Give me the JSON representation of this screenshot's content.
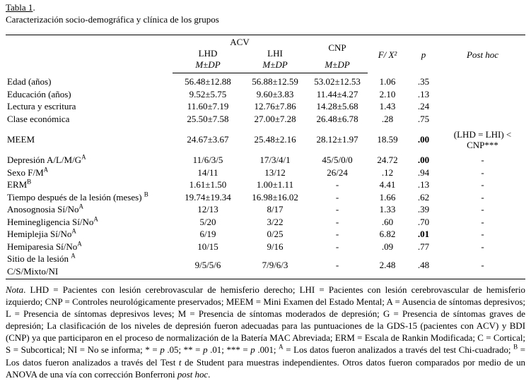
{
  "title": {
    "label": "Tabla 1",
    "period": ".",
    "caption": "Caracterización socio-demográfica y clínica de los grupos"
  },
  "table": {
    "header": {
      "group": "ACV",
      "col_lhd": "LHD",
      "col_lhi": "LHI",
      "col_cnp": "CNP",
      "col_stat": "F/ X²",
      "col_p": "p",
      "col_posthoc": "Post hoc",
      "subheader": "M±DP"
    },
    "rows": [
      {
        "label": "Edad (años)",
        "sup": "",
        "values": [
          "56.48±12.88",
          "56.88±12.59",
          "53.02±12.53",
          "1.06",
          ".35",
          ""
        ],
        "p_bold": false
      },
      {
        "label": "Educación (años)",
        "sup": "",
        "values": [
          "9.52±5.75",
          "9.60±3.83",
          "11.44±4.27",
          "2.10",
          ".13",
          ""
        ],
        "p_bold": false
      },
      {
        "label": "Lectura y escritura",
        "sup": "",
        "values": [
          "11.60±7.19",
          "12.76±7.86",
          "14.28±5.68",
          "1.43",
          ".24",
          ""
        ],
        "p_bold": false
      },
      {
        "label": "Clase económica",
        "sup": "",
        "values": [
          "25.50±7.58",
          "27.00±7.28",
          "26.48±6.78",
          ".28",
          ".75",
          ""
        ],
        "p_bold": false
      },
      {
        "label": "MEEM",
        "sup": "",
        "values": [
          "24.67±3.67",
          "25.48±2.16",
          "28.12±1.97",
          "18.59",
          ".00",
          "(LHD = LHI) < CNP***"
        ],
        "p_bold": true,
        "spaced": true
      },
      {
        "label": "Depresión A/L/M/G",
        "sup": "A",
        "values": [
          "11/6/3/5",
          "17/3/4/1",
          "45/5/0/0",
          "24.72",
          ".00",
          "-"
        ],
        "p_bold": true
      },
      {
        "label": "Sexo F/M",
        "sup": "A",
        "values": [
          "14/11",
          "13/12",
          "26/24",
          ".12",
          ".94",
          "-"
        ],
        "p_bold": false
      },
      {
        "label": "ERM",
        "sup": "B",
        "values": [
          "1.61±1.50",
          "1.00±1.11",
          "-",
          "4.41",
          ".13",
          "-"
        ],
        "p_bold": false
      },
      {
        "label": "Tiempo después de la lesión (meses) ",
        "sup": "B",
        "values": [
          "19.74±19.34",
          "16.98±16.02",
          "-",
          "1.66",
          ".62",
          "-"
        ],
        "p_bold": false
      },
      {
        "label": "Anosognosia Sí/No",
        "sup": "A",
        "values": [
          "12/13",
          "8/17",
          "-",
          "1.33",
          ".39",
          "-"
        ],
        "p_bold": false
      },
      {
        "label": "Heminegligencia Sí/No",
        "sup": "A",
        "values": [
          "5/20",
          "3/22",
          "-",
          ".60",
          ".70",
          "-"
        ],
        "p_bold": false
      },
      {
        "label": "Hemiplejia Sí/No",
        "sup": "A",
        "values": [
          "6/19",
          "0/25",
          "-",
          "6.82",
          ".01",
          "-"
        ],
        "p_bold": true
      },
      {
        "label": "Hemiparesia Sí/No",
        "sup": "A",
        "values": [
          "10/15",
          "9/16",
          "-",
          ".09",
          ".77",
          "-"
        ],
        "p_bold": false
      },
      {
        "label": "Sitio de la lesión ",
        "sup": "A",
        "label2": "C/S/Mixto/NI",
        "values": [
          "9/5/5/6",
          "7/9/6/3",
          "-",
          "2.48",
          ".48",
          "-"
        ],
        "p_bold": false
      }
    ]
  },
  "note": {
    "segments": [
      {
        "t": "Nota",
        "s": "i"
      },
      {
        "t": ". LHD = Pacientes con lesión cerebrovascular de hemisferio derecho; LHI = Pacientes con lesión cerebrovascular de hemisferio izquierdo; CNP = Controles neurológicamente preservados; MEEM = Mini Examen del Estado Mental; A = Ausencia de síntomas depresivos; L = Presencia de síntomas depresivos leves; M = Presencia de síntomas moderados de depresión; G = Presencia de síntomas graves de depresión; La clasificación de los niveles de depresión fueron adecuadas para las puntuaciones de la GDS-15 (pacientes con ACV) y BDI (CNP) ya que participaron en el proceso de normalización de la Batería MAC Abreviada; ERM = Escala de Rankin Modificada; C = Cortical; S = Subcortical; NI = No se informa; * = ",
        "s": ""
      },
      {
        "t": "p",
        "s": "i"
      },
      {
        "t": " .05; ** = ",
        "s": ""
      },
      {
        "t": "p",
        "s": "i"
      },
      {
        "t": " .01; *** = ",
        "s": ""
      },
      {
        "t": "p",
        "s": "i"
      },
      {
        "t": " .001; ",
        "s": ""
      },
      {
        "t": "A",
        "s": "sup"
      },
      {
        "t": " = Los datos fueron analizados a través del test Chi-cuadrado; ",
        "s": ""
      },
      {
        "t": "B",
        "s": "sup"
      },
      {
        "t": " = Los datos fueron analizados a través del Test ",
        "s": ""
      },
      {
        "t": "t",
        "s": "i"
      },
      {
        "t": " de Student para muestras independientes. Otros datos fueron comparados por medio de un ANOVA de una vía con corrección Bonferroni ",
        "s": ""
      },
      {
        "t": "post hoc",
        "s": "i"
      },
      {
        "t": ".",
        "s": ""
      }
    ]
  }
}
